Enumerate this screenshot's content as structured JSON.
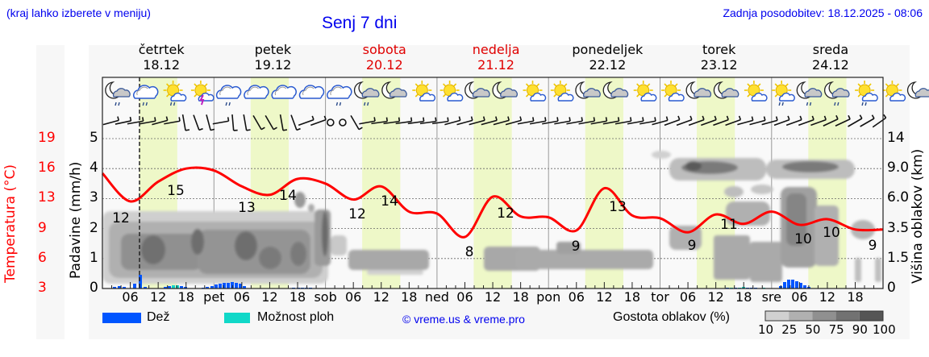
{
  "header": {
    "location_hint": "(kraj lahko izberete v meniju)",
    "title": "Senj 7 dni",
    "last_update": "Zadnja posodobitev: 18.12.2025 - 08:06"
  },
  "days": [
    {
      "name": "četrtek",
      "date": "18.12",
      "weekend": false
    },
    {
      "name": "petek",
      "date": "19.12",
      "weekend": false
    },
    {
      "name": "sobota",
      "date": "20.12",
      "weekend": true
    },
    {
      "name": "nedelja",
      "date": "21.12",
      "weekend": true
    },
    {
      "name": "ponedeljek",
      "date": "22.12",
      "weekend": false
    },
    {
      "name": "torek",
      "date": "23.12",
      "weekend": false
    },
    {
      "name": "sreda",
      "date": "24.12",
      "weekend": false
    }
  ],
  "axes": {
    "temp_label": "Temperatura (°C)",
    "temp_ticks": [
      "19",
      "16",
      "13",
      "9",
      "6",
      "3"
    ],
    "precip_label": "Padavine (mm/h)",
    "precip_ticks": [
      "5",
      "4",
      "3",
      "2",
      "1",
      "0"
    ],
    "cloud_label": "Višina oblakov (km)",
    "cloud_ticks": [
      "14",
      "9.0",
      "6.0",
      "3.5",
      "1.5",
      "0"
    ],
    "x_ticks": [
      "06",
      "12",
      "18",
      "pet",
      "06",
      "12",
      "18",
      "sob",
      "06",
      "12",
      "18",
      "ned",
      "06",
      "12",
      "18",
      "pon",
      "06",
      "12",
      "18",
      "tor",
      "06",
      "12",
      "18",
      "sre",
      "06",
      "12",
      "18"
    ]
  },
  "legend": {
    "rain": "Dež",
    "showers": "Možnost ploh",
    "copyright": "© vreme.us & vreme.pro",
    "cloud_density": "Gostota oblakov (%)",
    "density_ticks": [
      "10",
      "25",
      "50",
      "75",
      "90",
      "100"
    ]
  },
  "colors": {
    "temperature": "#ff0000",
    "rain": "#0055ff",
    "showers": "#11d8c8",
    "daylight": "#eef8c8",
    "link": "#0000ee",
    "weekend": "#e00000"
  },
  "chart_data": {
    "type": "line",
    "title": "Senj 7 dni",
    "xlabel": "",
    "ylabel": "Temperatura (°C) / Padavine (mm/h)",
    "y2label": "Višina oblakov (km)",
    "x": [
      "18.12 00",
      "18.12 06",
      "18.12 12",
      "18.12 18",
      "19.12 00",
      "19.12 06",
      "19.12 12",
      "19.12 18",
      "20.12 00",
      "20.12 06",
      "20.12 12",
      "20.12 18",
      "21.12 00",
      "21.12 06",
      "21.12 12",
      "21.12 18",
      "22.12 00",
      "22.12 06",
      "22.12 12",
      "22.12 18",
      "23.12 00",
      "23.12 06",
      "23.12 12",
      "23.12 18",
      "24.12 00",
      "24.12 06",
      "24.12 12",
      "24.12 18"
    ],
    "series": [
      {
        "name": "Temperatura (°C)",
        "values": [
          15.3,
          12.3,
          14.4,
          15.8,
          15.6,
          13.9,
          13.0,
          14.7,
          14.2,
          12.5,
          13.9,
          11.2,
          11.0,
          8.5,
          12.8,
          10.7,
          10.6,
          9.2,
          13.7,
          10.8,
          10.5,
          9.0,
          10.9,
          9.9,
          11.2,
          9.8,
          10.4,
          9.3
        ]
      },
      {
        "name": "Dež (mm/h)",
        "values": [
          0.1,
          0.15,
          0.5,
          0.1,
          0.2,
          0.3,
          0.0,
          0.1,
          0.0,
          0.0,
          0.0,
          0.0,
          0.0,
          0.0,
          0.0,
          0.0,
          0.0,
          0.0,
          0.0,
          0.0,
          0.0,
          0.0,
          0.0,
          0.1,
          0.1,
          0.35,
          0.05,
          0.0
        ]
      },
      {
        "name": "Možnost ploh",
        "values": [
          0,
          0,
          0.15,
          0,
          0,
          0,
          0,
          0,
          0,
          0,
          0,
          0,
          0,
          0,
          0,
          0,
          0,
          0,
          0,
          0,
          0,
          0,
          0.1,
          0.05,
          0,
          0,
          0,
          0
        ]
      }
    ],
    "temp_annotations": [
      {
        "label": "12",
        "time": "18.12 03"
      },
      {
        "label": "15",
        "time": "18.12 15"
      },
      {
        "label": "13",
        "time": "19.12 03"
      },
      {
        "label": "14",
        "time": "19.12 15"
      },
      {
        "label": "12",
        "time": "20.12 03"
      },
      {
        "label": "14",
        "time": "20.12 15"
      },
      {
        "label": "8",
        "time": "21.12 06"
      },
      {
        "label": "12",
        "time": "21.12 14"
      },
      {
        "label": "9",
        "time": "22.12 06"
      },
      {
        "label": "13",
        "time": "22.12 14"
      },
      {
        "label": "9",
        "time": "23.12 03"
      },
      {
        "label": "11",
        "time": "23.12 14"
      },
      {
        "label": "10",
        "time": "24.12 03"
      },
      {
        "label": "10",
        "time": "24.12 09"
      },
      {
        "label": "9",
        "time": "24.12 23"
      }
    ],
    "ylim_temp": [
      3,
      19
    ],
    "ylim_precip": [
      0,
      5
    ],
    "ylim_cloud_km": [
      0,
      14
    ],
    "grid": true,
    "legend_position": "bottom",
    "current_time_marker": "18.12 08:06"
  }
}
